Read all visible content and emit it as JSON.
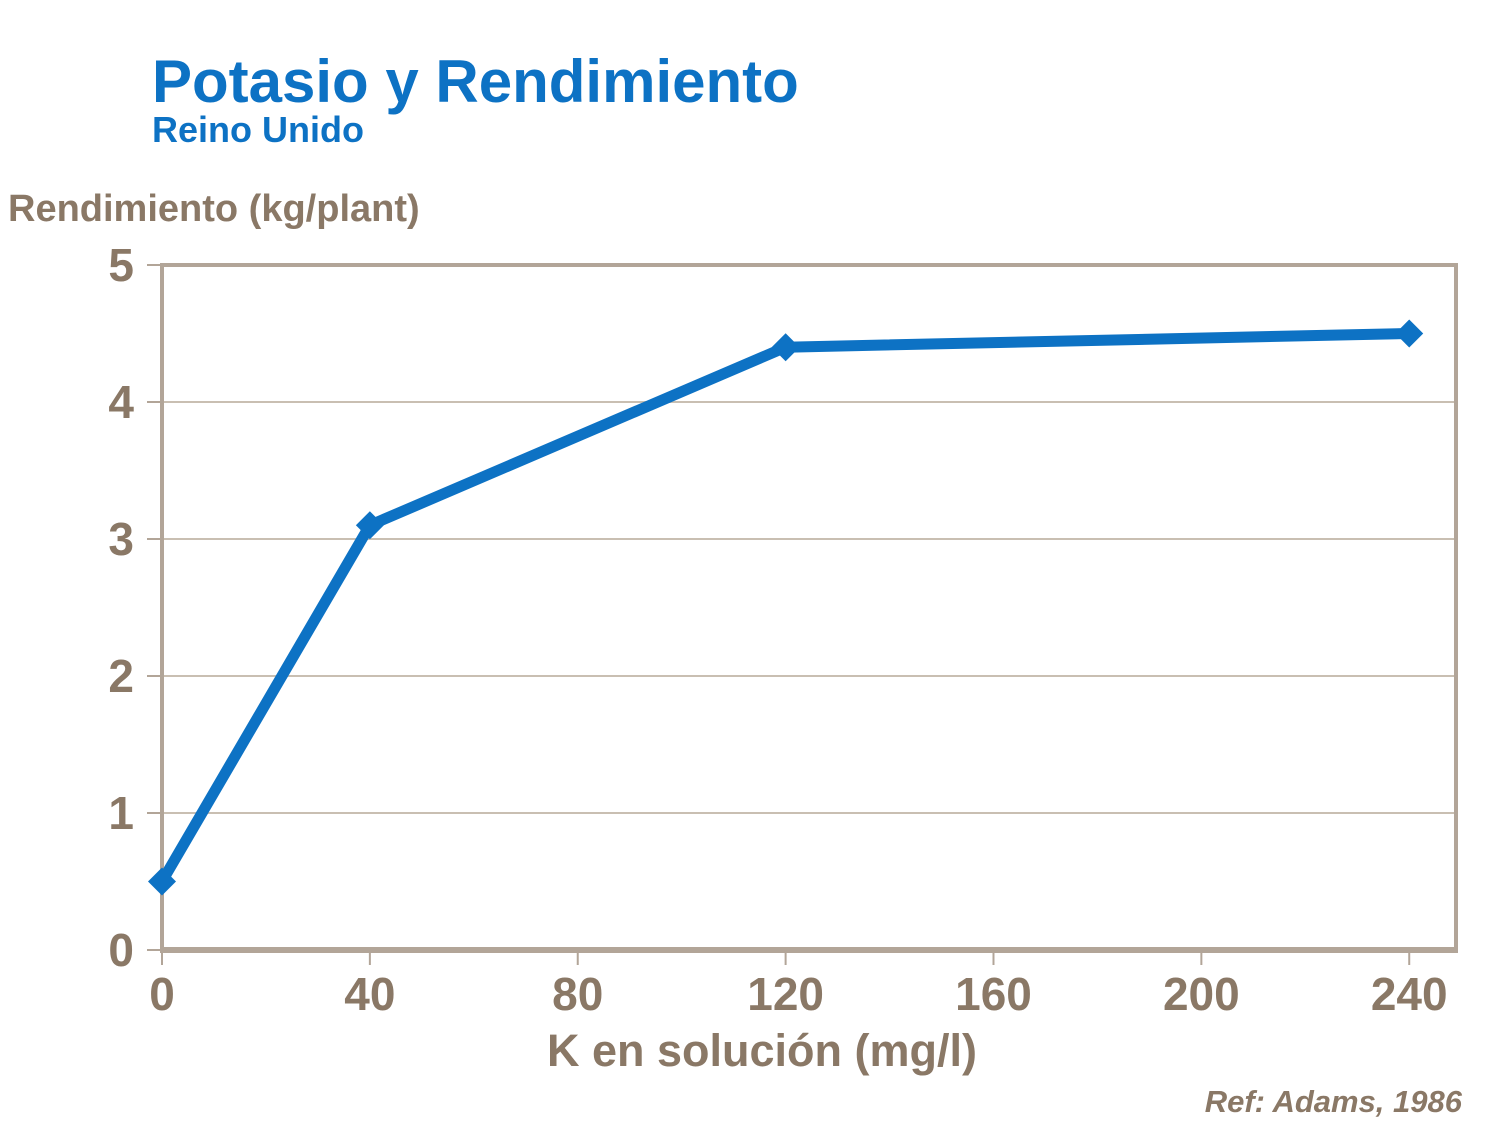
{
  "header": {
    "title": "Potasio y Rendimiento",
    "subtitle": "Reino Unido",
    "title_color": "#0d72c4"
  },
  "chart_data": {
    "type": "line",
    "title": "Potasio y Rendimiento",
    "subtitle": "Reino Unido",
    "xlabel": "K en solución (mg/l)",
    "ylabel": "Rendimiento (kg/plant)",
    "series": [
      {
        "name": "Rendimiento",
        "x": [
          0,
          40,
          120,
          240
        ],
        "y": [
          0.5,
          3.1,
          4.4,
          4.5
        ]
      }
    ],
    "x_ticks": [
      0,
      40,
      80,
      120,
      160,
      200,
      240
    ],
    "y_ticks": [
      0,
      1,
      2,
      3,
      4,
      5
    ],
    "xlim": [
      0,
      249
    ],
    "ylim": [
      0,
      5
    ],
    "grid": "horizontal-only",
    "legend": "none",
    "marker": "diamond",
    "line_color": "#0d72c4",
    "axis_color": "#b2a598",
    "gridline_color": "#c9bfb2",
    "tick_label_color": "#8a7866"
  },
  "footer": {
    "ref": "Ref: Adams, 1986"
  }
}
